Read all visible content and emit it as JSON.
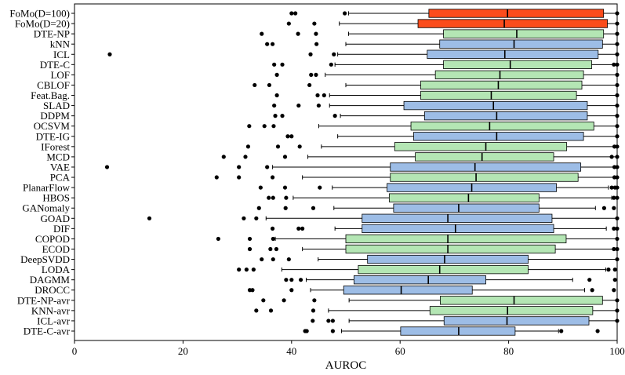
{
  "chart_data": {
    "type": "boxplot",
    "orientation": "horizontal",
    "title": "",
    "xlabel": "AUROC",
    "ylabel": "",
    "xlim": [
      0,
      100
    ],
    "xticks": [
      0,
      20,
      40,
      60,
      80,
      100
    ],
    "grid": false,
    "colors": {
      "FoMo": "#fb4c1c",
      "DTE": "#b4e6b4",
      "other": "#9dbde6"
    },
    "series": [
      {
        "name": "FoMo(D=100)",
        "group": "FoMo",
        "whislo": 50.5,
        "q1": 65.3,
        "med": 79.8,
        "q3": 97.5,
        "whishi": 100,
        "outliers": [
          40,
          40.7,
          49.8,
          100
        ]
      },
      {
        "name": "FoMo(D=20)",
        "group": "FoMo",
        "whislo": 48.8,
        "q1": 63.3,
        "med": 79.2,
        "q3": 98.2,
        "whishi": 100,
        "outliers": [
          39.5,
          44.2,
          100
        ]
      },
      {
        "name": "DTE-NP",
        "group": "DTE",
        "whislo": 50.5,
        "q1": 68,
        "med": 81.5,
        "q3": 97.5,
        "whishi": 100,
        "outliers": [
          34.5,
          41.2,
          44.5,
          100
        ]
      },
      {
        "name": "kNN",
        "group": "other",
        "whislo": 50,
        "q1": 67.3,
        "med": 81,
        "q3": 97.3,
        "whishi": 100,
        "outliers": [
          35.5,
          36.5,
          44.6,
          100
        ]
      },
      {
        "name": "ICL",
        "group": "other",
        "whislo": 48.5,
        "q1": 65,
        "med": 79.3,
        "q3": 96.5,
        "whishi": 100,
        "outliers": [
          6.5,
          43.5,
          47.8,
          100
        ]
      },
      {
        "name": "DTE-C",
        "group": "DTE",
        "whislo": 48,
        "q1": 68,
        "med": 80.3,
        "q3": 95.3,
        "whishi": 100,
        "outliers": [
          36.8,
          38.3,
          47.3,
          99.4,
          100
        ]
      },
      {
        "name": "LOF",
        "group": "DTE",
        "whislo": 46.2,
        "q1": 66.5,
        "med": 78.4,
        "q3": 93.8,
        "whishi": 100,
        "outliers": [
          37.3,
          43.6,
          44.5,
          100
        ]
      },
      {
        "name": "CBLOF",
        "group": "DTE",
        "whislo": 50,
        "q1": 63.8,
        "med": 78.1,
        "q3": 93.5,
        "whishi": 100,
        "outliers": [
          33.2,
          35.9,
          43.3,
          100
        ]
      },
      {
        "name": "Feat.Bag.",
        "group": "DTE",
        "whislo": 47,
        "q1": 63.8,
        "med": 76.8,
        "q3": 92.5,
        "whishi": 100,
        "outliers": [
          37.3,
          44.8,
          46,
          100
        ]
      },
      {
        "name": "SLAD",
        "group": "other",
        "whislo": 47,
        "q1": 60.7,
        "med": 77.2,
        "q3": 94.5,
        "whishi": 100,
        "outliers": [
          36.8,
          41.3,
          45,
          100
        ]
      },
      {
        "name": "DDPM",
        "group": "other",
        "whislo": 49,
        "q1": 64.5,
        "med": 77.8,
        "q3": 94.5,
        "whishi": 100,
        "outliers": [
          37,
          38.3,
          48,
          100
        ]
      },
      {
        "name": "OCSVM",
        "group": "DTE",
        "whislo": 45,
        "q1": 62,
        "med": 76.5,
        "q3": 95.7,
        "whishi": 100,
        "outliers": [
          32.2,
          35,
          36.7,
          100
        ]
      },
      {
        "name": "DTE-IG",
        "group": "other",
        "whislo": 48.5,
        "q1": 62.5,
        "med": 77.8,
        "q3": 93.8,
        "whishi": 100,
        "outliers": [
          39.3,
          40,
          100
        ]
      },
      {
        "name": "IForest",
        "group": "DTE",
        "whislo": 45.5,
        "q1": 59,
        "med": 75.8,
        "q3": 90.7,
        "whishi": 100,
        "outliers": [
          32,
          37.5,
          41.5,
          99.5,
          100
        ]
      },
      {
        "name": "MCD",
        "group": "DTE",
        "whislo": 43,
        "q1": 62.8,
        "med": 75.1,
        "q3": 88.3,
        "whishi": 100,
        "outliers": [
          27.5,
          31.5,
          38.8,
          99,
          100
        ]
      },
      {
        "name": "VAE",
        "group": "other",
        "whislo": 36.5,
        "q1": 58.2,
        "med": 73.8,
        "q3": 93.3,
        "whishi": 100,
        "outliers": [
          6,
          30.3,
          35.5,
          99.5,
          100
        ]
      },
      {
        "name": "PCA",
        "group": "DTE",
        "whislo": 42,
        "q1": 58.2,
        "med": 74,
        "q3": 92.8,
        "whishi": 100,
        "outliers": [
          26.2,
          30.3,
          36.5,
          99.5,
          100
        ]
      },
      {
        "name": "PlanarFlow",
        "group": "other",
        "whislo": 47.5,
        "q1": 57.6,
        "med": 73.2,
        "q3": 88.8,
        "whishi": 98.4,
        "outliers": [
          34.3,
          38.8,
          45.2,
          99,
          99.6,
          100
        ]
      },
      {
        "name": "HBOS",
        "group": "DTE",
        "whislo": 40.3,
        "q1": 58,
        "med": 72.6,
        "q3": 85.6,
        "whishi": 99,
        "outliers": [
          35.8,
          36.6,
          39,
          99.4,
          100
        ]
      },
      {
        "name": "GANomaly",
        "group": "other",
        "whislo": 47.8,
        "q1": 58.8,
        "med": 70.8,
        "q3": 85.6,
        "whishi": 96,
        "outliers": [
          34,
          38.9,
          44,
          97.6,
          99.4
        ]
      },
      {
        "name": "GOAD",
        "group": "other",
        "whislo": 35.3,
        "q1": 53,
        "med": 68.8,
        "q3": 88,
        "whishi": 100,
        "outliers": [
          13.8,
          31.2,
          33.5,
          100
        ]
      },
      {
        "name": "DIF",
        "group": "other",
        "whislo": 48,
        "q1": 53,
        "med": 70.2,
        "q3": 88.3,
        "whishi": 98,
        "outliers": [
          36.5,
          41.3,
          42,
          99.4,
          100
        ]
      },
      {
        "name": "COPOD",
        "group": "DTE",
        "whislo": 37,
        "q1": 50,
        "med": 68.8,
        "q3": 90.6,
        "whishi": 100,
        "outliers": [
          26.5,
          32.3,
          36.6,
          100
        ]
      },
      {
        "name": "ECOD",
        "group": "DTE",
        "whislo": 42,
        "q1": 50,
        "med": 68.8,
        "q3": 88.6,
        "whishi": 100,
        "outliers": [
          32.3,
          36.1,
          37.2,
          99.4,
          100
        ]
      },
      {
        "name": "DeepSVDD",
        "group": "other",
        "whislo": 44.9,
        "q1": 54,
        "med": 68.2,
        "q3": 83.6,
        "whishi": 100,
        "outliers": [
          34.5,
          36.6,
          39.5,
          100
        ]
      },
      {
        "name": "LODA",
        "group": "DTE",
        "whislo": 38.2,
        "q1": 52.3,
        "med": 67.3,
        "q3": 83.6,
        "whishi": 97.9,
        "outliers": [
          30.3,
          31.7,
          33,
          98.4,
          99.6
        ]
      },
      {
        "name": "DAGMM",
        "group": "other",
        "whislo": 42.7,
        "q1": 51.5,
        "med": 65.2,
        "q3": 75.8,
        "whishi": 91.8,
        "outliers": [
          39,
          40,
          41.7,
          94.9,
          99.6
        ]
      },
      {
        "name": "DROCC",
        "group": "other",
        "whislo": 43.5,
        "q1": 49.6,
        "med": 60.2,
        "q3": 73.3,
        "whishi": 94,
        "outliers": [
          32.3,
          32.8,
          40,
          95.4,
          99.4
        ]
      },
      {
        "name": "DTE-NP-avr",
        "group": "DTE",
        "whislo": 50.6,
        "q1": 67.4,
        "med": 81,
        "q3": 97.3,
        "whishi": 100,
        "outliers": [
          34.8,
          38.6,
          44.2,
          100
        ]
      },
      {
        "name": "KNN-avr",
        "group": "DTE",
        "whislo": 46.8,
        "q1": 65.5,
        "med": 79.8,
        "q3": 95.5,
        "whishi": 100,
        "outliers": [
          33.5,
          36.2,
          44,
          100
        ]
      },
      {
        "name": "ICL-avr",
        "group": "other",
        "whislo": 50.6,
        "q1": 68.1,
        "med": 79.7,
        "q3": 94.8,
        "whishi": 100,
        "outliers": [
          43.9,
          46.8,
          47.6,
          100
        ]
      },
      {
        "name": "DTE-C-avr",
        "group": "other",
        "whislo": 49.2,
        "q1": 60.1,
        "med": 70.8,
        "q3": 81.2,
        "whishi": 89.2,
        "outliers": [
          42.5,
          42.8,
          47.6,
          89.7,
          96.4
        ]
      }
    ]
  }
}
